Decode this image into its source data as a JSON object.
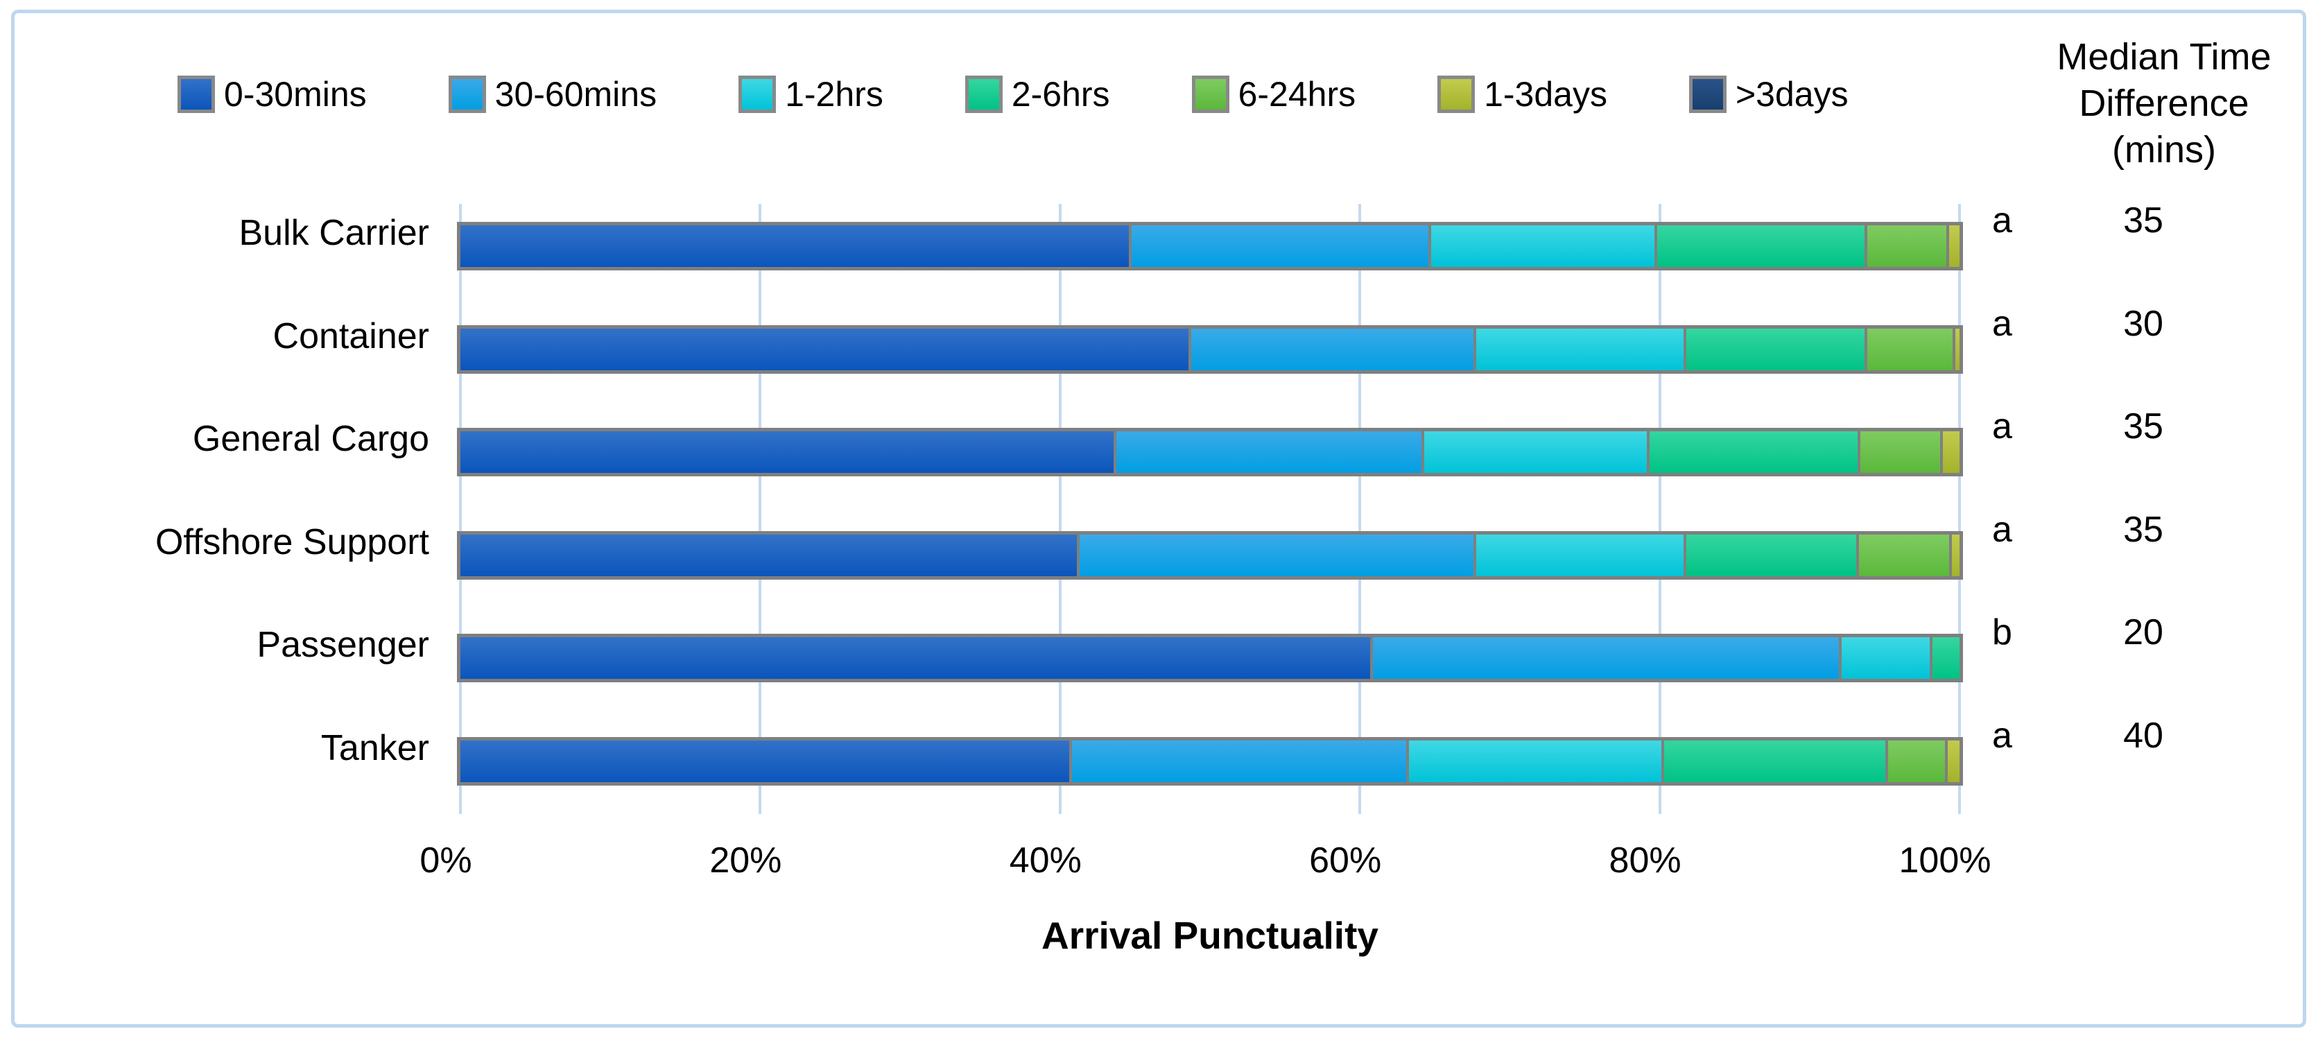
{
  "frame": {
    "border_color": "#BDD7EE",
    "background": "#FFFFFF"
  },
  "styles": {
    "bar_border_color": "#7F7F7F",
    "gridline_color": "#C5D9F0",
    "text_color": "#000000"
  },
  "median_column": {
    "header_lines": [
      "Median Time",
      "Difference",
      "(mins)"
    ],
    "letters": [
      "a",
      "a",
      "a",
      "a",
      "b",
      "a"
    ],
    "values": [
      "35",
      "30",
      "35",
      "35",
      "20",
      "40"
    ]
  },
  "chart_data": {
    "type": "bar",
    "orientation": "horizontal",
    "stacked": true,
    "title": "",
    "xlabel": "Arrival Punctuality",
    "ylabel": "",
    "xlim": [
      0,
      100
    ],
    "x_ticks": [
      "0%",
      "20%",
      "40%",
      "60%",
      "80%",
      "100%"
    ],
    "x_tick_values": [
      0,
      20,
      40,
      60,
      80,
      100
    ],
    "grid": true,
    "legend_position": "top",
    "categories": [
      "Bulk Carrier",
      "Container",
      "General Cargo",
      "Offshore Support",
      "Passenger",
      "Tanker"
    ],
    "series": [
      {
        "name": "0-30mins",
        "color_top": "#3272C8",
        "color_bottom": "#0B55BC",
        "values": [
          45.0,
          49.0,
          44.0,
          41.5,
          61.0,
          41.0
        ]
      },
      {
        "name": "30-60mins",
        "color_top": "#3AAAE8",
        "color_bottom": "#019EE3",
        "values": [
          20.0,
          19.0,
          20.5,
          26.5,
          31.3,
          22.5
        ]
      },
      {
        "name": "1-2hrs",
        "color_top": "#3FD8E4",
        "color_bottom": "#00C3D8",
        "values": [
          15.0,
          14.0,
          15.0,
          14.0,
          5.9,
          17.0
        ]
      },
      {
        "name": "2-6hrs",
        "color_top": "#35D6A0",
        "color_bottom": "#00C285",
        "values": [
          14.0,
          12.0,
          14.0,
          11.4,
          1.8,
          14.9
        ]
      },
      {
        "name": "6-24hrs",
        "color_top": "#7FCB61",
        "color_bottom": "#5BB83B",
        "values": [
          5.3,
          5.7,
          5.4,
          6.1,
          0.0,
          3.8
        ]
      },
      {
        "name": "1-3days",
        "color_top": "#C2CB4E",
        "color_bottom": "#A3B32A",
        "values": [
          0.7,
          0.3,
          1.1,
          0.5,
          0.0,
          0.8
        ]
      },
      {
        "name": ">3days",
        "color_top": "#2A5288",
        "color_bottom": "#17406E",
        "values": [
          0.0,
          0.0,
          0.0,
          0.0,
          0.0,
          0.0
        ]
      }
    ],
    "median_time_difference_mins": {
      "Bulk Carrier": 35,
      "Container": 30,
      "General Cargo": 35,
      "Offshore Support": 35,
      "Passenger": 20,
      "Tanker": 40
    },
    "significance_letters": {
      "Bulk Carrier": "a",
      "Container": "a",
      "General Cargo": "a",
      "Offshore Support": "a",
      "Passenger": "b",
      "Tanker": "a"
    }
  }
}
